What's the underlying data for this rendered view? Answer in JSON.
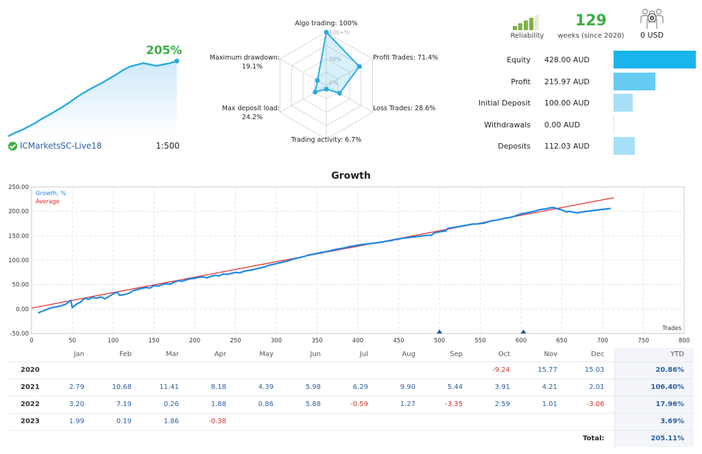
{
  "account": {
    "growth": "205%",
    "name": "ICMarketsSC-Live18",
    "leverage": "1:500",
    "growth_curve": [
      0,
      8,
      14,
      22,
      30,
      40,
      48,
      57,
      66,
      76,
      87,
      97,
      106,
      114,
      122,
      131,
      140,
      150,
      158,
      162,
      166,
      163,
      160,
      163,
      166,
      171
    ]
  },
  "radar": {
    "axes": [
      {
        "label": "Algo trading: 100%",
        "value": 100
      },
      {
        "label": "Profit Trades: 71.4%",
        "value": 71.4
      },
      {
        "label": "Loss Trades: 28.6%",
        "value": 28.6
      },
      {
        "label": "Trading activity: 6.7%",
        "value": 6.7
      },
      {
        "label": "Max deposit load:",
        "value2": "24.2%",
        "value": 24.2
      },
      {
        "label": "Maximum drawdown:",
        "value2": "19.1%",
        "value": 19.1
      }
    ],
    "ring_labels": [
      "100+%",
      "50%",
      "0%"
    ]
  },
  "header_stats": {
    "reliability_label": "Reliability",
    "reliability_level": 4,
    "reliability_max": 5,
    "weeks": "129",
    "weeks_label": "weeks (since 2020)",
    "subscribers_count": "0",
    "subscribers_value": "0 USD"
  },
  "money": [
    {
      "label": "Equity",
      "value": "428.00 AUD",
      "amount": 428.0,
      "color": "#1ab4ec"
    },
    {
      "label": "Profit",
      "value": "215.97 AUD",
      "amount": 215.97,
      "color": "#66cbf2"
    },
    {
      "label": "Initial Deposit",
      "value": "100.00 AUD",
      "amount": 100.0,
      "color": "#a7e0f6"
    },
    {
      "label": "Withdrawals",
      "value": "0.00 AUD",
      "amount": 0.0,
      "color": "#d5eef9"
    },
    {
      "label": "Deposits",
      "value": "112.03 AUD",
      "amount": 112.03,
      "color": "#a7e0f6"
    }
  ],
  "growth_chart": {
    "title": "Growth",
    "legend_growth": "Growth, %",
    "legend_average": "Average",
    "x_axis_label": "Trades",
    "colors": {
      "growth": "#1e88e5",
      "average": "#e02020",
      "marker": "#1a5b9a"
    },
    "chart_data": {
      "type": "line",
      "xlim": [
        0,
        800
      ],
      "ylim": [
        -50,
        250
      ],
      "x_ticks": [
        0,
        50,
        100,
        150,
        200,
        250,
        300,
        350,
        400,
        450,
        500,
        550,
        600,
        650,
        700,
        750,
        800
      ],
      "y_ticks": [
        "-50.00",
        "0.00",
        "50.00",
        "100.00",
        "150.00",
        "200.00",
        "250.00"
      ],
      "grid": true,
      "legend": "top-left",
      "series": [
        {
          "name": "Growth, %",
          "points": [
            [
              8,
              -8
            ],
            [
              15,
              -3
            ],
            [
              25,
              3
            ],
            [
              35,
              6
            ],
            [
              42,
              10
            ],
            [
              48,
              18
            ],
            [
              50,
              3
            ],
            [
              55,
              10
            ],
            [
              60,
              14
            ],
            [
              65,
              22
            ],
            [
              70,
              20
            ],
            [
              75,
              24
            ],
            [
              80,
              22
            ],
            [
              85,
              25
            ],
            [
              90,
              21
            ],
            [
              95,
              26
            ],
            [
              100,
              31
            ],
            [
              105,
              35
            ],
            [
              108,
              28
            ],
            [
              115,
              30
            ],
            [
              120,
              33
            ],
            [
              125,
              38
            ],
            [
              130,
              40
            ],
            [
              135,
              42
            ],
            [
              140,
              44
            ],
            [
              145,
              43
            ],
            [
              150,
              48
            ],
            [
              155,
              47
            ],
            [
              160,
              50
            ],
            [
              165,
              52
            ],
            [
              170,
              51
            ],
            [
              175,
              55
            ],
            [
              180,
              58
            ],
            [
              185,
              57
            ],
            [
              190,
              60
            ],
            [
              195,
              62
            ],
            [
              200,
              63
            ],
            [
              205,
              65
            ],
            [
              210,
              66
            ],
            [
              215,
              64
            ],
            [
              220,
              67
            ],
            [
              225,
              69
            ],
            [
              230,
              68
            ],
            [
              235,
              72
            ],
            [
              240,
              71
            ],
            [
              245,
              73
            ],
            [
              250,
              75
            ],
            [
              255,
              74
            ],
            [
              260,
              77
            ],
            [
              265,
              79
            ],
            [
              270,
              80
            ],
            [
              275,
              82
            ],
            [
              280,
              84
            ],
            [
              285,
              86
            ],
            [
              290,
              89
            ],
            [
              295,
              91
            ],
            [
              300,
              93
            ],
            [
              305,
              95
            ],
            [
              310,
              97
            ],
            [
              315,
              99
            ],
            [
              320,
              102
            ],
            [
              325,
              104
            ],
            [
              330,
              106
            ],
            [
              335,
              108
            ],
            [
              340,
              111
            ],
            [
              345,
              112
            ],
            [
              350,
              114
            ],
            [
              355,
              116
            ],
            [
              360,
              117
            ],
            [
              365,
              119
            ],
            [
              370,
              121
            ],
            [
              375,
              123
            ],
            [
              380,
              124
            ],
            [
              385,
              126
            ],
            [
              390,
              128
            ],
            [
              395,
              129
            ],
            [
              400,
              131
            ],
            [
              405,
              132
            ],
            [
              410,
              133
            ],
            [
              415,
              134
            ],
            [
              420,
              135
            ],
            [
              425,
              136
            ],
            [
              430,
              137
            ],
            [
              435,
              139
            ],
            [
              440,
              140
            ],
            [
              445,
              142
            ],
            [
              450,
              143
            ],
            [
              455,
              145
            ],
            [
              460,
              146
            ],
            [
              465,
              147
            ],
            [
              470,
              148
            ],
            [
              475,
              149
            ],
            [
              480,
              150
            ],
            [
              485,
              151
            ],
            [
              490,
              151
            ],
            [
              493,
              155
            ],
            [
              496,
              157
            ],
            [
              500,
              158
            ],
            [
              504,
              159
            ],
            [
              508,
              160
            ],
            [
              510,
              165
            ],
            [
              513,
              166
            ],
            [
              517,
              167
            ],
            [
              520,
              168
            ],
            [
              525,
              169
            ],
            [
              530,
              171
            ],
            [
              535,
              172
            ],
            [
              540,
              174
            ],
            [
              545,
              174
            ],
            [
              550,
              175
            ],
            [
              555,
              176
            ],
            [
              560,
              179
            ],
            [
              565,
              181
            ],
            [
              570,
              182
            ],
            [
              575,
              184
            ],
            [
              580,
              186
            ],
            [
              585,
              187
            ],
            [
              590,
              189
            ],
            [
              595,
              192
            ],
            [
              600,
              195
            ],
            [
              605,
              196
            ],
            [
              610,
              198
            ],
            [
              615,
              200
            ],
            [
              620,
              202
            ],
            [
              625,
              204
            ],
            [
              630,
              205
            ],
            [
              635,
              207
            ],
            [
              640,
              208
            ],
            [
              645,
              205
            ],
            [
              650,
              203
            ],
            [
              655,
              199
            ],
            [
              660,
              200
            ],
            [
              665,
              198
            ],
            [
              670,
              197
            ],
            [
              675,
              199
            ],
            [
              680,
              200
            ],
            [
              685,
              201
            ],
            [
              690,
              202
            ],
            [
              695,
              203
            ],
            [
              700,
              204
            ],
            [
              705,
              205
            ],
            [
              710,
              206
            ]
          ]
        },
        {
          "name": "Average",
          "points": [
            [
              0,
              2
            ],
            [
              714,
              228
            ]
          ]
        }
      ],
      "markers_x": [
        500,
        603
      ]
    }
  },
  "monthly": {
    "columns": [
      "",
      "Jan",
      "Feb",
      "Mar",
      "Apr",
      "May",
      "Jun",
      "Jul",
      "Aug",
      "Sep",
      "Oct",
      "Nov",
      "Dec",
      "YTD"
    ],
    "rows": [
      {
        "year": "2020",
        "values": [
          "",
          "",
          "",
          "",
          "",
          "",
          "",
          "",
          "",
          "-9.24",
          "15.77",
          "15.03"
        ],
        "ytd": "20.86%"
      },
      {
        "year": "2021",
        "values": [
          "2.79",
          "10.68",
          "11.41",
          "8.18",
          "4.39",
          "5.98",
          "6.29",
          "9.90",
          "5.44",
          "3.91",
          "4.21",
          "2.01"
        ],
        "ytd": "106.40%"
      },
      {
        "year": "2022",
        "values": [
          "3.20",
          "7.19",
          "0.26",
          "1.88",
          "0.86",
          "5.88",
          "-0.59",
          "1.27",
          "-3.35",
          "2.59",
          "1.01",
          "-3.06"
        ],
        "ytd": "17.96%"
      },
      {
        "year": "2023",
        "values": [
          "1.99",
          "0.19",
          "1.86",
          "-0.38",
          "",
          "",
          "",
          "",
          "",
          "",
          "",
          ""
        ],
        "ytd": "3.69%"
      }
    ],
    "total_label": "Total:",
    "total_value": "205.11%"
  }
}
